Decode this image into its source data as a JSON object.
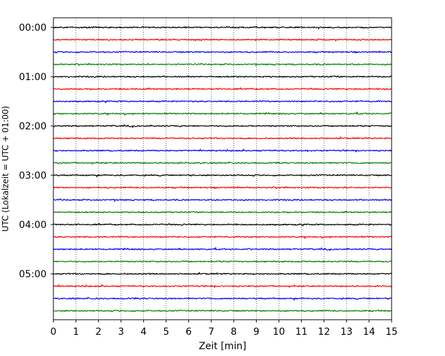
{
  "chart_data": {
    "type": "line",
    "xlabel": "Zeit  [min]",
    "ylabel": "UTC (Lokalzeit = UTC + 01:00)",
    "xlim": [
      0,
      15
    ],
    "x_ticks": [
      0,
      1,
      2,
      3,
      4,
      5,
      6,
      7,
      8,
      9,
      10,
      11,
      12,
      13,
      14,
      15
    ],
    "y_ticks": [
      "00:00",
      "01:00",
      "02:00",
      "03:00",
      "04:00",
      "05:00"
    ],
    "grid": "vertical dotted",
    "trace_colors": [
      "#000000",
      "#ff0000",
      "#0000ff",
      "#008000"
    ],
    "rows": [
      {
        "start": "00:00",
        "color": "#000000"
      },
      {
        "start": "00:15",
        "color": "#ff0000"
      },
      {
        "start": "00:30",
        "color": "#0000ff"
      },
      {
        "start": "00:45",
        "color": "#008000"
      },
      {
        "start": "01:00",
        "color": "#000000"
      },
      {
        "start": "01:15",
        "color": "#ff0000"
      },
      {
        "start": "01:30",
        "color": "#0000ff"
      },
      {
        "start": "01:45",
        "color": "#008000"
      },
      {
        "start": "02:00",
        "color": "#000000"
      },
      {
        "start": "02:15",
        "color": "#ff0000"
      },
      {
        "start": "02:30",
        "color": "#0000ff"
      },
      {
        "start": "02:45",
        "color": "#008000"
      },
      {
        "start": "03:00",
        "color": "#000000"
      },
      {
        "start": "03:15",
        "color": "#ff0000"
      },
      {
        "start": "03:30",
        "color": "#0000ff"
      },
      {
        "start": "03:45",
        "color": "#008000"
      },
      {
        "start": "04:00",
        "color": "#000000"
      },
      {
        "start": "04:15",
        "color": "#ff0000"
      },
      {
        "start": "04:30",
        "color": "#0000ff"
      },
      {
        "start": "04:45",
        "color": "#008000"
      },
      {
        "start": "05:00",
        "color": "#000000"
      },
      {
        "start": "05:15",
        "color": "#ff0000"
      },
      {
        "start": "05:30",
        "color": "#0000ff"
      },
      {
        "start": "05:45",
        "color": "#008000"
      }
    ]
  }
}
